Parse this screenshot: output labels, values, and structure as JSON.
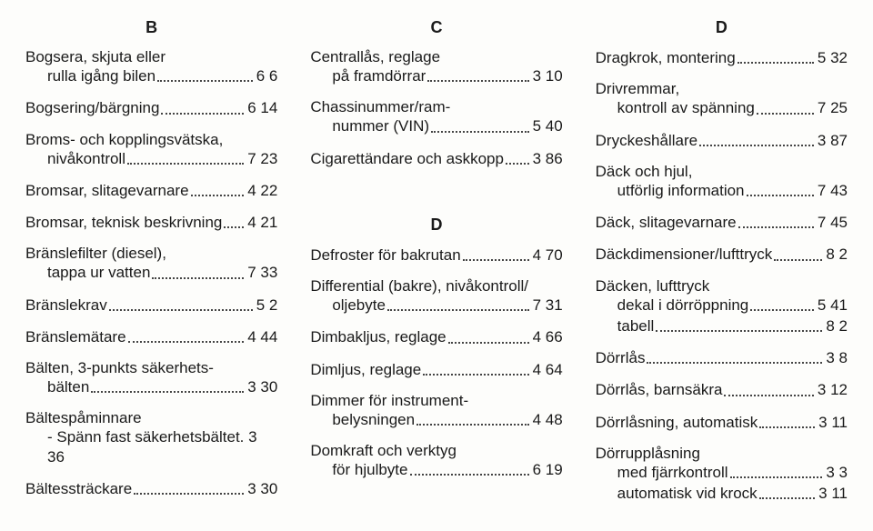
{
  "cols": [
    {
      "heading": "B",
      "items": [
        {
          "lines": [
            "Bogsera, skjuta eller",
            "rulla igång bilen"
          ],
          "page": "6 6"
        },
        {
          "lines": [
            "Bogsering/bärgning"
          ],
          "page": "6 14"
        },
        {
          "lines": [
            "Broms- och kopplingsvätska,",
            "nivåkontroll"
          ],
          "page": "7 23"
        },
        {
          "lines": [
            "Bromsar, slitagevarnare"
          ],
          "page": "4 22"
        },
        {
          "lines": [
            "Bromsar, teknisk beskrivning"
          ],
          "page": "4 21"
        },
        {
          "lines": [
            "Bränslefilter (diesel),",
            "tappa ur vatten"
          ],
          "page": "7 33"
        },
        {
          "lines": [
            "Bränslekrav"
          ],
          "page": "5 2"
        },
        {
          "lines": [
            "Bränslemätare"
          ],
          "page": "4 44"
        },
        {
          "lines": [
            "Bälten, 3-punkts säkerhets-",
            "bälten"
          ],
          "page": "3 30"
        },
        {
          "lines": [
            "Bältespåminnare",
            "- Spänn fast säkerhetsbältet"
          ],
          "page": "3 36",
          "nodots": true
        },
        {
          "lines": [
            "Bältessträckare"
          ],
          "page": "3 30"
        }
      ]
    },
    {
      "heading": "C",
      "items": [
        {
          "lines": [
            "Centrallås, reglage",
            "på framdörrar"
          ],
          "page": "3 10"
        },
        {
          "lines": [
            "Chassinummer/ram-",
            "nummer (VIN)"
          ],
          "page": "5 40"
        },
        {
          "lines": [
            "Cigarettändare och askkopp"
          ],
          "page": "3 86"
        },
        {
          "heading": "D"
        },
        {
          "lines": [
            "Defroster för bakrutan"
          ],
          "page": "4 70"
        },
        {
          "lines": [
            "Differential (bakre), nivåkontroll/",
            "oljebyte"
          ],
          "page": "7 31"
        },
        {
          "lines": [
            "Dimbakljus, reglage"
          ],
          "page": "4 66"
        },
        {
          "lines": [
            "Dimljus, reglage"
          ],
          "page": "4 64"
        },
        {
          "lines": [
            "Dimmer för instrument-",
            "belysningen"
          ],
          "page": "4 48"
        },
        {
          "lines": [
            "Domkraft och verktyg",
            "för hjulbyte"
          ],
          "page": "6 19"
        }
      ]
    },
    {
      "heading": "D",
      "items": [
        {
          "lines": [
            "Dragkrok, montering"
          ],
          "page": "5 32"
        },
        {
          "lines": [
            "Drivremmar,",
            "kontroll av spänning"
          ],
          "page": "7 25"
        },
        {
          "lines": [
            "Dryckeshållare"
          ],
          "page": "3 87"
        },
        {
          "lines": [
            "Däck och hjul,",
            "utförlig information"
          ],
          "page": "7 43"
        },
        {
          "lines": [
            "Däck, slitagevarnare"
          ],
          "page": "7 45"
        },
        {
          "lines": [
            "Däckdimensioner/lufttryck"
          ],
          "page": "8 2"
        },
        {
          "lines": [
            "Däcken, lufttryck",
            "dekal i dörröppning"
          ],
          "page": "5 41",
          "tight": true
        },
        {
          "lines": [
            "tabell"
          ],
          "page": "8 2",
          "sub": true
        },
        {
          "lines": [
            "Dörrlås"
          ],
          "page": "3 8"
        },
        {
          "lines": [
            "Dörrlås, barnsäkra"
          ],
          "page": "3 12"
        },
        {
          "lines": [
            "Dörrlåsning, automatisk"
          ],
          "page": "3 11"
        },
        {
          "lines": [
            "Dörrupplåsning",
            "med fjärrkontroll"
          ],
          "page": "3 3",
          "tight": true
        },
        {
          "lines": [
            "automatisk vid krock"
          ],
          "page": "3 11",
          "sub": true
        }
      ]
    }
  ]
}
